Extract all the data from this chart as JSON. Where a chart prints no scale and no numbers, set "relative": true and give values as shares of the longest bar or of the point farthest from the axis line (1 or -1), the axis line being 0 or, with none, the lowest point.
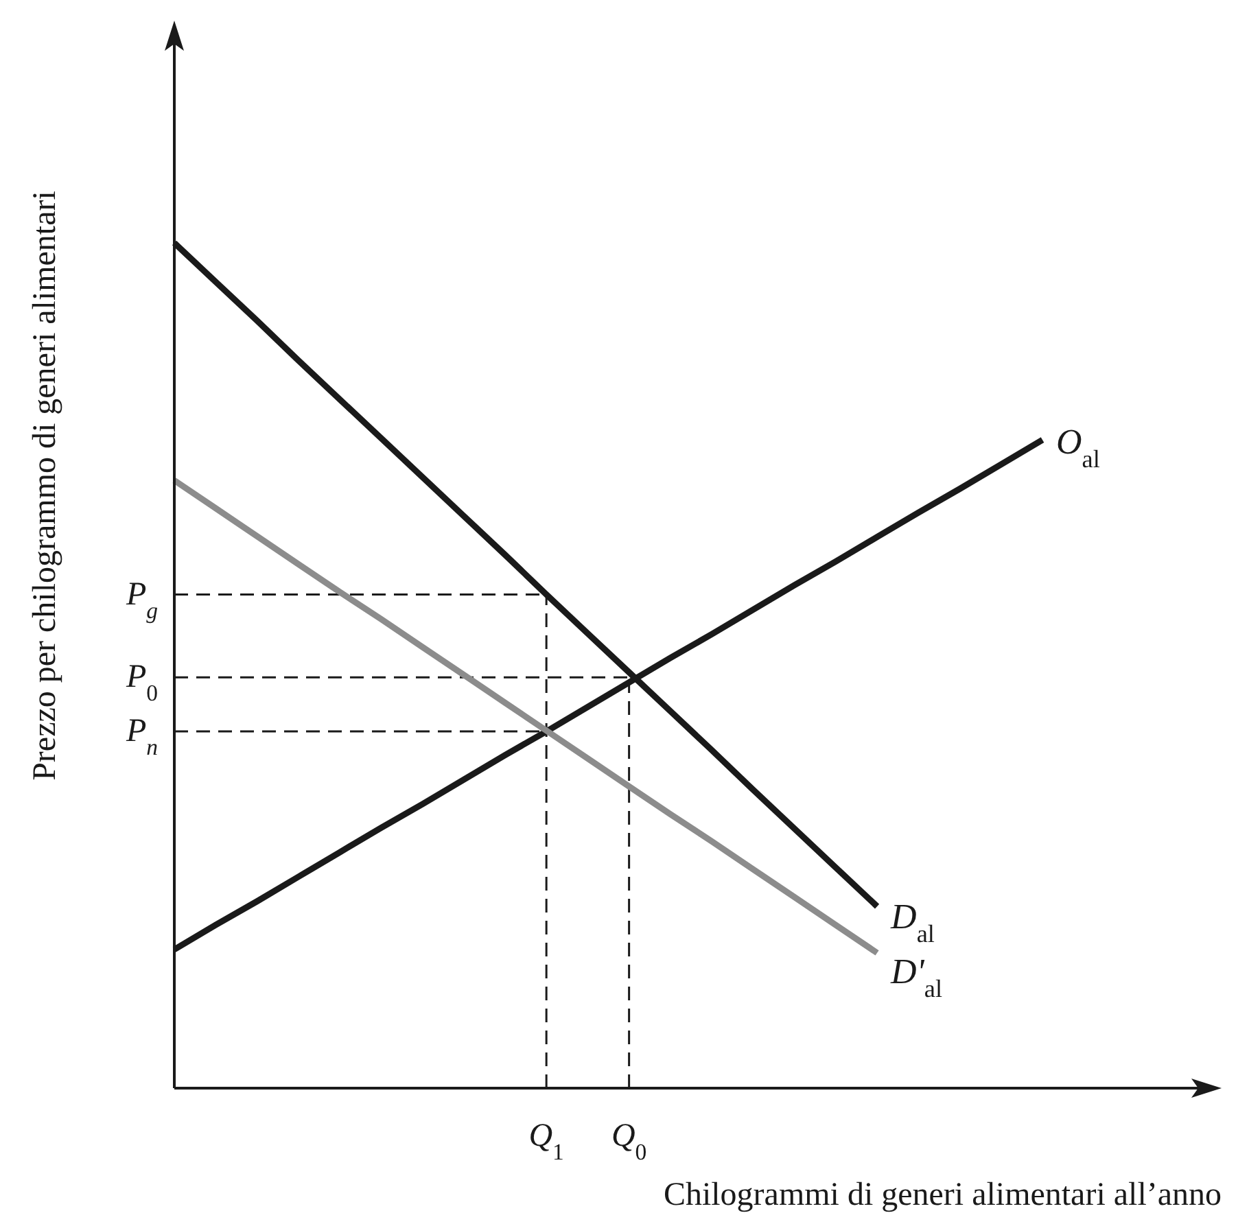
{
  "chart_data": {
    "type": "line",
    "relative": true,
    "legend": false,
    "xlabel": "Chilogrammi di generi alimentari all’anno",
    "ylabel": "Prezzo per chilogrammo di generi alimentari",
    "categories": [
      null,
      null,
      null,
      null,
      null,
      null,
      null,
      null,
      null,
      "Q$_{1}$",
      null,
      "Q$_{0}$",
      null,
      null,
      null,
      null,
      null,
      null,
      null,
      null,
      null,
      null
    ],
    "series": [
      {
        "name": "O$_{al}$",
        "color": "#1a1a1a",
        "values": [
          0.164,
          0.193,
          0.221,
          0.25,
          0.279,
          0.308,
          0.336,
          0.365,
          0.394,
          0.422,
          0.451,
          0.48,
          0.509,
          0.537,
          0.566,
          0.595,
          0.623,
          0.652,
          0.681,
          0.709,
          0.738,
          0.767
        ]
      },
      {
        "name": "D$_{al}$",
        "color": "#1a1a1a",
        "values": [
          1,
          0.954,
          0.908,
          0.861,
          0.815,
          0.769,
          0.723,
          0.677,
          0.631,
          0.584,
          0.538,
          0.492,
          0.446,
          0.4,
          0.353,
          0.307,
          0.261,
          0.215,
          null,
          null,
          null,
          null
        ]
      },
      {
        "name": "D'$_{al}$",
        "color": "#8c8c8c",
        "values": [
          0.719,
          0.686,
          0.653,
          0.62,
          0.587,
          0.555,
          0.522,
          0.489,
          0.456,
          0.423,
          0.39,
          0.357,
          0.324,
          0.292,
          0.259,
          0.226,
          0.193,
          0.16,
          null,
          null,
          null,
          null
        ]
      }
    ],
    "ref_lines": [
      {
        "axis": "y",
        "value": 0.584,
        "label": "P$_{g}$",
        "line_style": "dashed",
        "color": "#1a1a1a"
      },
      {
        "axis": "y",
        "value": 0.486,
        "label": "P$_{0}$",
        "line_style": "dashed",
        "color": "#1a1a1a"
      },
      {
        "axis": "y",
        "value": 0.422,
        "label": "P$_{n}$",
        "line_style": "dashed",
        "color": "#1a1a1a"
      },
      {
        "axis": "x",
        "value": "Q$_{1}$",
        "line_style": "dashed",
        "color": "#1a1a1a"
      },
      {
        "axis": "x",
        "value": "Q$_{0}$",
        "line_style": "dashed",
        "color": "#1a1a1a"
      }
    ]
  }
}
